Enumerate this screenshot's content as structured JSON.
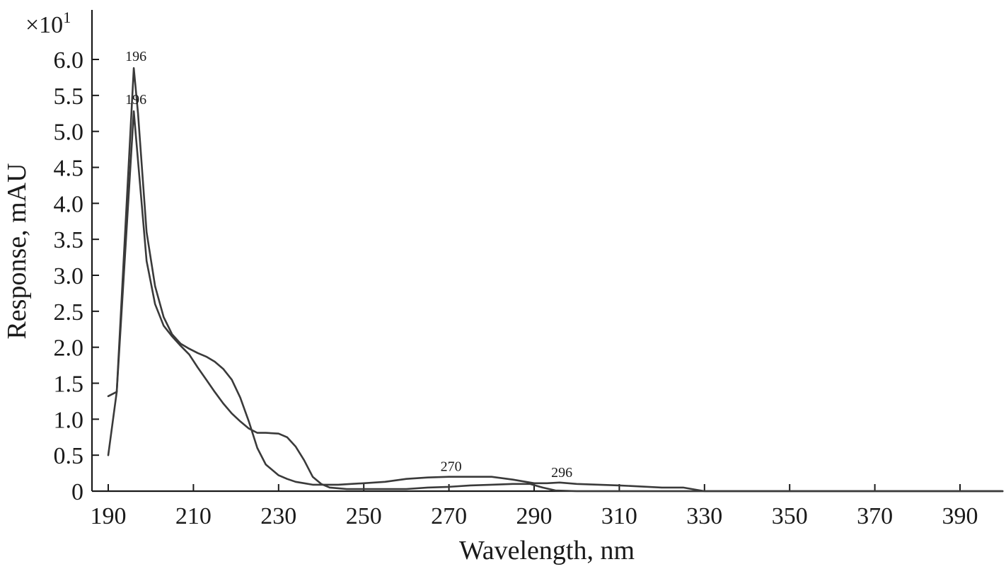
{
  "chart_data": {
    "type": "line",
    "title": "",
    "xlabel": "Wavelength, nm",
    "ylabel": "Response, mAU",
    "y_multiplier": "×10",
    "y_multiplier_exp": "1",
    "xlim": [
      190,
      400
    ],
    "ylim": [
      0,
      6.0
    ],
    "xticks": [
      "190",
      "210",
      "230",
      "250",
      "270",
      "290",
      "310",
      "330",
      "350",
      "370",
      "390"
    ],
    "yticks": [
      "0",
      "0.5",
      "1.0",
      "1.5",
      "2.0",
      "2.5",
      "3.0",
      "3.5",
      "4.0",
      "4.5",
      "5.0",
      "5.5",
      "6.0"
    ],
    "grid": false,
    "series": [
      {
        "x": [
          190,
          192,
          196,
          197,
          199,
          201,
          203,
          205,
          207,
          209,
          211,
          213,
          215,
          217,
          219,
          221,
          223,
          225,
          227,
          230,
          232,
          234,
          236,
          238,
          241,
          244,
          247,
          250,
          255,
          260,
          265,
          270,
          275,
          280,
          285,
          290,
          293,
          296,
          300,
          310,
          320,
          325,
          328,
          330,
          400
        ],
        "y": [
          0.5,
          1.38,
          5.88,
          5.25,
          3.6,
          2.85,
          2.42,
          2.18,
          2.05,
          1.98,
          1.92,
          1.87,
          1.8,
          1.7,
          1.55,
          1.3,
          0.97,
          0.6,
          0.37,
          0.22,
          0.17,
          0.13,
          0.11,
          0.09,
          0.09,
          0.09,
          0.1,
          0.11,
          0.13,
          0.17,
          0.19,
          0.2,
          0.2,
          0.2,
          0.16,
          0.11,
          0.11,
          0.12,
          0.1,
          0.08,
          0.05,
          0.05,
          0.02,
          0.0,
          0.0
        ]
      },
      {
        "x": [
          190,
          192,
          196,
          199,
          201,
          203,
          205,
          207,
          209,
          211,
          213,
          215,
          217,
          219,
          221,
          223,
          225,
          227,
          230,
          232,
          234,
          236,
          238,
          240,
          242,
          244,
          246,
          248,
          250,
          255,
          260,
          265,
          270,
          275,
          280,
          285,
          289,
          292,
          295,
          300,
          310,
          330,
          400
        ],
        "y": [
          1.32,
          1.38,
          5.28,
          3.2,
          2.6,
          2.3,
          2.15,
          2.02,
          1.9,
          1.72,
          1.55,
          1.38,
          1.22,
          1.08,
          0.97,
          0.87,
          0.81,
          0.81,
          0.8,
          0.75,
          0.62,
          0.43,
          0.2,
          0.1,
          0.05,
          0.04,
          0.03,
          0.03,
          0.03,
          0.03,
          0.03,
          0.05,
          0.06,
          0.08,
          0.09,
          0.1,
          0.1,
          0.05,
          0.01,
          0.0,
          0.0,
          0.0,
          0.0
        ]
      }
    ],
    "annotations": [
      {
        "text": "196",
        "x": 196,
        "y": 5.9,
        "offset": "above"
      },
      {
        "text": "196",
        "x": 196,
        "y": 5.3,
        "offset": "above"
      },
      {
        "text": "270",
        "x": 270,
        "y": 0.2,
        "offset": "above"
      },
      {
        "text": "296",
        "x": 296,
        "y": 0.12,
        "offset": "above"
      }
    ]
  }
}
